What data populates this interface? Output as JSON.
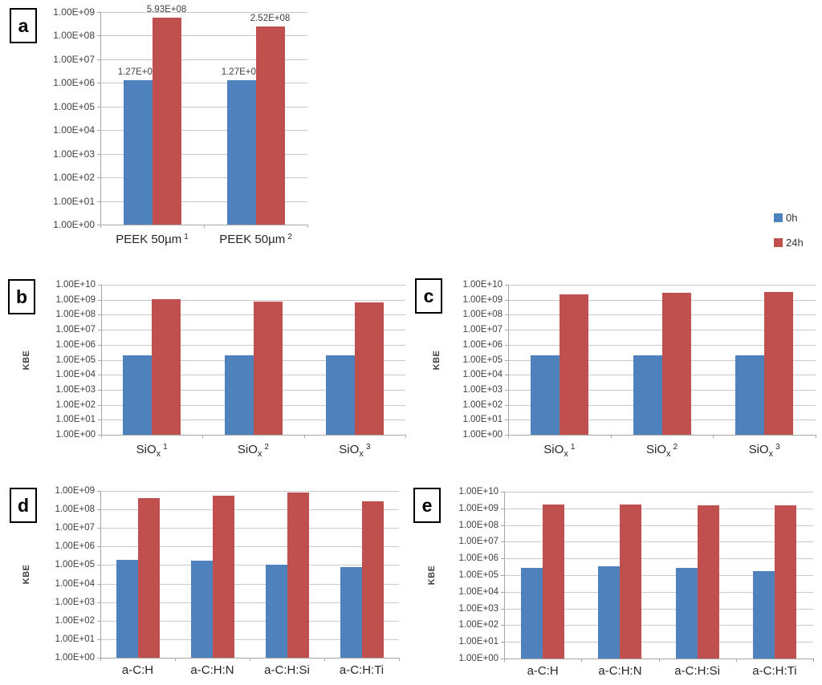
{
  "figure": {
    "background": "#ffffff",
    "legend_position": "right"
  },
  "legend": {
    "items": [
      {
        "label": "0h",
        "color": "#4F81BD"
      },
      {
        "label": "24h",
        "color": "#C0504D"
      }
    ]
  },
  "chart_data": [
    {
      "panel_label": "a",
      "type": "bar",
      "yscale": "log",
      "ylabel": "",
      "ylim": [
        1,
        1000000000
      ],
      "decades": 9,
      "grid": true,
      "yticks": [
        "1.00E+09",
        "1.00E+08",
        "1.00E+07",
        "1.00E+06",
        "1.00E+05",
        "1.00E+04",
        "1.00E+03",
        "1.00E+02",
        "1.00E+01",
        "1.00E+00"
      ],
      "categories": [
        {
          "base": "PEEK 50µm",
          "sub": "",
          "sup": "1"
        },
        {
          "base": "PEEK 50µm",
          "sub": "",
          "sup": "2"
        }
      ],
      "series": [
        {
          "name": "0h",
          "color": "#4F81BD",
          "values": [
            1270000,
            1270000
          ],
          "labels": [
            "1.27E+06",
            "1.27E+06"
          ]
        },
        {
          "name": "24h",
          "color": "#C0504D",
          "values": [
            593000000,
            252000000
          ],
          "labels": [
            "5.93E+08",
            "2.52E+08"
          ]
        }
      ]
    },
    {
      "panel_label": "b",
      "type": "bar",
      "yscale": "log",
      "ylabel": "KBE",
      "ylim": [
        1,
        10000000000
      ],
      "decades": 10,
      "grid": true,
      "yticks": [
        "1.00E+10",
        "1.00E+09",
        "1.00E+08",
        "1.00E+07",
        "1.00E+06",
        "1.00E+05",
        "1.00E+04",
        "1.00E+03",
        "1.00E+02",
        "1.00E+01",
        "1.00E+00"
      ],
      "categories": [
        {
          "base": "SiO",
          "sub": "x",
          "sup": "1"
        },
        {
          "base": "SiO",
          "sub": "x",
          "sup": "2"
        },
        {
          "base": "SiO",
          "sub": "x",
          "sup": "3"
        }
      ],
      "series": [
        {
          "name": "0h",
          "color": "#4F81BD",
          "values": [
            200000,
            200000,
            200000
          ]
        },
        {
          "name": "24h",
          "color": "#C0504D",
          "values": [
            1100000000,
            800000000,
            650000000
          ]
        }
      ]
    },
    {
      "panel_label": "c",
      "type": "bar",
      "yscale": "log",
      "ylabel": "KBE",
      "ylim": [
        1,
        10000000000
      ],
      "decades": 10,
      "grid": true,
      "yticks": [
        "1.00E+10",
        "1.00E+09",
        "1.00E+08",
        "1.00E+07",
        "1.00E+06",
        "1.00E+05",
        "1.00E+04",
        "1.00E+03",
        "1.00E+02",
        "1.00E+01",
        "1.00E+00"
      ],
      "categories": [
        {
          "base": "SiO",
          "sub": "x",
          "sup": "1"
        },
        {
          "base": "SiO",
          "sub": "x",
          "sup": "2"
        },
        {
          "base": "SiO",
          "sub": "x",
          "sup": "3"
        }
      ],
      "series": [
        {
          "name": "0h",
          "color": "#4F81BD",
          "values": [
            200000,
            200000,
            200000
          ]
        },
        {
          "name": "24h",
          "color": "#C0504D",
          "values": [
            2200000000,
            2800000000,
            3500000000
          ]
        }
      ]
    },
    {
      "panel_label": "d",
      "type": "bar",
      "yscale": "log",
      "ylabel": "KBE",
      "ylim": [
        1,
        1000000000
      ],
      "decades": 9,
      "grid": true,
      "yticks": [
        "1.00E+09",
        "1.00E+08",
        "1.00E+07",
        "1.00E+06",
        "1.00E+05",
        "1.00E+04",
        "1.00E+03",
        "1.00E+02",
        "1.00E+01",
        "1.00E+00"
      ],
      "categories": [
        {
          "base": "a-C:H",
          "sub": "",
          "sup": ""
        },
        {
          "base": "a-C:H:N",
          "sub": "",
          "sup": ""
        },
        {
          "base": "a-C:H:Si",
          "sub": "",
          "sup": ""
        },
        {
          "base": "a-C:H:Ti",
          "sub": "",
          "sup": ""
        }
      ],
      "series": [
        {
          "name": "0h",
          "color": "#4F81BD",
          "values": [
            200000,
            170000,
            100000,
            75000
          ]
        },
        {
          "name": "24h",
          "color": "#C0504D",
          "values": [
            400000000,
            550000000,
            800000000,
            280000000
          ]
        }
      ]
    },
    {
      "panel_label": "e",
      "type": "bar",
      "yscale": "log",
      "ylabel": "KBE",
      "ylim": [
        1,
        10000000000
      ],
      "decades": 10,
      "grid": true,
      "yticks": [
        "1.00E+10",
        "1.00E+09",
        "1.00E+08",
        "1.00E+07",
        "1.00E+06",
        "1.00E+05",
        "1.00E+04",
        "1.00E+03",
        "1.00E+02",
        "1.00E+01",
        "1.00E+00"
      ],
      "categories": [
        {
          "base": "a-C:H",
          "sub": "",
          "sup": ""
        },
        {
          "base": "a-C:H:N",
          "sub": "",
          "sup": ""
        },
        {
          "base": "a-C:H:Si",
          "sub": "",
          "sup": ""
        },
        {
          "base": "a-C:H:Ti",
          "sub": "",
          "sup": ""
        }
      ],
      "series": [
        {
          "name": "0h",
          "color": "#4F81BD",
          "values": [
            270000,
            340000,
            270000,
            170000
          ]
        },
        {
          "name": "24h",
          "color": "#C0504D",
          "values": [
            1800000000,
            1800000000,
            1500000000,
            1600000000
          ]
        }
      ]
    }
  ]
}
